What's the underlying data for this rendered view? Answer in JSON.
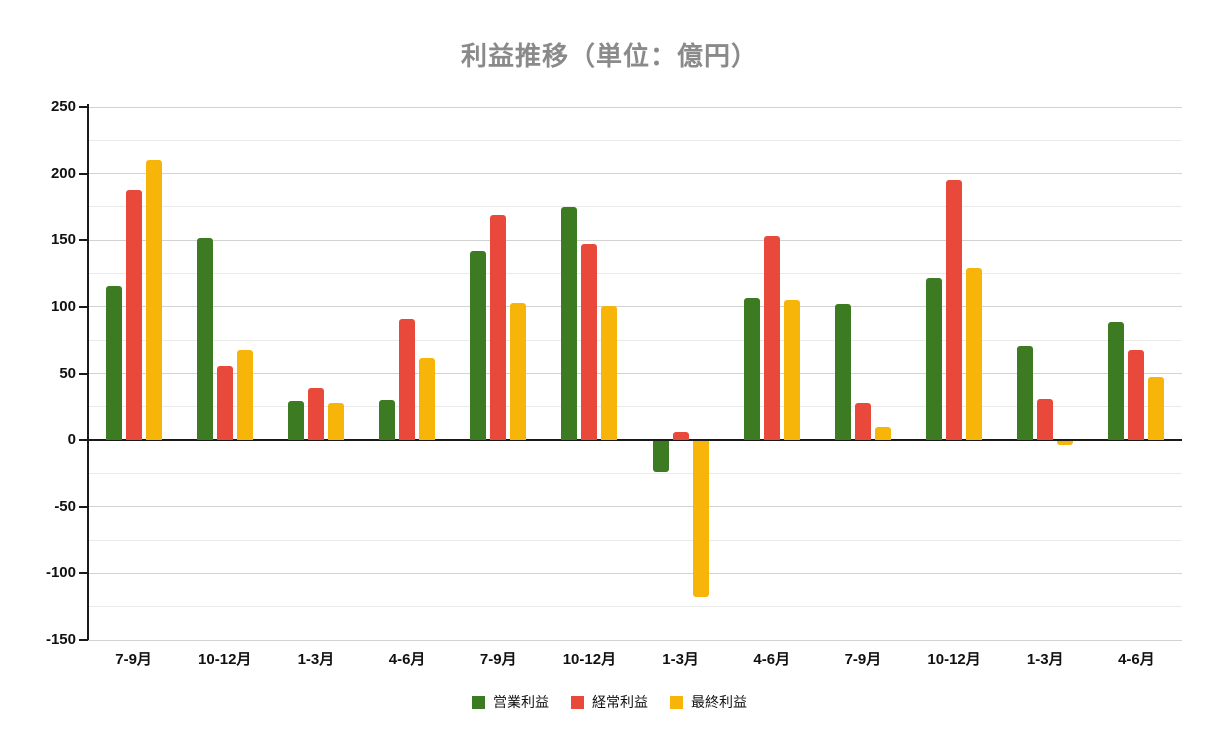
{
  "page": {
    "background": "#ffffff",
    "text_color": "#111111",
    "title_color": "#8a8a8a",
    "major_grid_color": "#d2d2d2",
    "minor_grid_color": "#eaeaea",
    "axis_color": "#1a1a1a"
  },
  "chart_data": {
    "type": "bar",
    "title": "利益推移（単位：億円）",
    "xlabel": "",
    "ylabel": "",
    "categories": [
      "7-9月",
      "10-12月",
      "1-3月",
      "4-6月",
      "7-9月",
      "10-12月",
      "1-3月",
      "4-6月",
      "7-9月",
      "10-12月",
      "1-3月",
      "4-6月"
    ],
    "series": [
      {
        "name": "営業利益",
        "color": "#3d7b22",
        "values": [
          116,
          152,
          29,
          30,
          142,
          175,
          -23,
          107,
          102,
          122,
          71,
          89
        ]
      },
      {
        "name": "経常利益",
        "color": "#e8493b",
        "values": [
          188,
          56,
          39,
          91,
          169,
          147,
          6,
          153,
          28,
          195,
          31,
          68
        ]
      },
      {
        "name": "最終利益",
        "color": "#f8b509",
        "values": [
          210,
          68,
          28,
          62,
          103,
          101,
          -117,
          105,
          10,
          129,
          -3,
          47
        ]
      }
    ],
    "ylim": [
      -150,
      250
    ],
    "y_major_step": 50,
    "y_minor_step": 25,
    "y_ticks": [
      250,
      200,
      150,
      100,
      50,
      0,
      -50,
      -100,
      -150
    ],
    "grid": true,
    "legend_position": "bottom"
  }
}
